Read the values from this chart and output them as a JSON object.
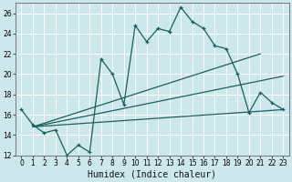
{
  "xlabel": "Humidex (Indice chaleur)",
  "bg_color": "#cde8ec",
  "grid_color": "#b0d4d8",
  "line_color": "#1a5f5a",
  "xlim": [
    -0.5,
    23.5
  ],
  "ylim": [
    12,
    27
  ],
  "xticks": [
    0,
    1,
    2,
    3,
    4,
    5,
    6,
    7,
    8,
    9,
    10,
    11,
    12,
    13,
    14,
    15,
    16,
    17,
    18,
    19,
    20,
    21,
    22,
    23
  ],
  "yticks": [
    12,
    14,
    16,
    18,
    20,
    22,
    24,
    26
  ],
  "main_x": [
    0,
    1,
    2,
    3,
    4,
    5,
    6,
    7,
    8,
    9,
    10,
    11,
    12,
    13,
    14,
    15,
    16,
    17,
    18,
    19,
    20,
    21,
    22,
    23
  ],
  "main_y": [
    16.5,
    15.0,
    14.2,
    14.5,
    12.0,
    13.0,
    12.3,
    21.5,
    20.0,
    17.0,
    24.8,
    23.2,
    24.5,
    24.2,
    26.6,
    25.2,
    24.5,
    22.8,
    22.5,
    20.0,
    16.2,
    18.2,
    17.2,
    16.5
  ],
  "trend1_x": [
    1,
    21
  ],
  "trend1_y": [
    14.8,
    22.0
  ],
  "trend2_x": [
    1,
    23
  ],
  "trend2_y": [
    14.8,
    19.8
  ],
  "trend3_x": [
    1,
    23
  ],
  "trend3_y": [
    14.8,
    16.5
  ],
  "xlabel_fontsize": 7,
  "tick_fontsize": 5.5
}
